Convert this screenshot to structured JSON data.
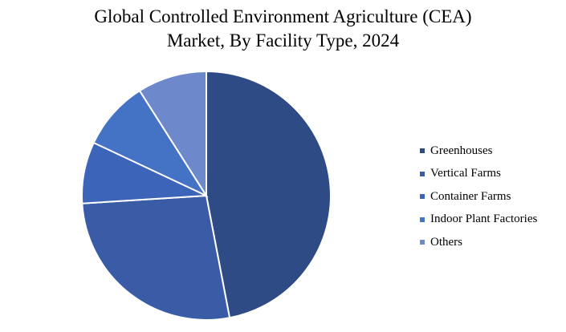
{
  "chart_data": {
    "type": "pie",
    "title_lines": [
      "Global Controlled Environment Agriculture (CEA)",
      "Market, By Facility Type, 2024"
    ],
    "categories": [
      "Greenhouses",
      "Vertical Farms",
      "Container Farms",
      "Indoor Plant Factories",
      "Others"
    ],
    "values": [
      47,
      27,
      8,
      9,
      9
    ],
    "colors": [
      "#2f4b86",
      "#3a5ca6",
      "#3c64b8",
      "#4472c4",
      "#6d88cb"
    ],
    "legend_position": "right",
    "data_labels": false
  }
}
